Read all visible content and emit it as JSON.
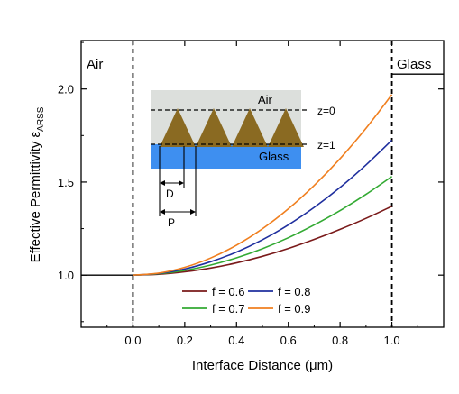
{
  "chart_data": {
    "type": "line",
    "xlabel": "Interface Distance (μm)",
    "ylabel": "Effective Permittivity ε",
    "ylabel_sub": "ARSS",
    "xlim": [
      -0.2,
      1.2
    ],
    "ylim": [
      0.72,
      2.26
    ],
    "xticks": [
      0.0,
      0.2,
      0.4,
      0.6,
      0.8,
      1.0
    ],
    "xtick_labels": [
      "0.0",
      "0.2",
      "0.4",
      "0.6",
      "0.8",
      "1.0"
    ],
    "yticks": [
      1.0,
      1.5,
      2.0
    ],
    "ytick_labels": [
      "1.0",
      "1.5",
      "2.0"
    ],
    "grid": false,
    "legend_position": "bottom-center",
    "region_labels": {
      "left": "Air",
      "right": "Glass"
    },
    "boundaries": [
      0.0,
      1.0
    ],
    "baseline": {
      "air_value": 1.0,
      "glass_value": 2.08
    },
    "series": [
      {
        "name": "f = 0.6",
        "color": "#7a1a1a",
        "x": [
          0.0,
          0.1,
          0.2,
          0.3,
          0.4,
          0.5,
          0.6,
          0.7,
          0.8,
          0.9,
          1.0
        ],
        "y": [
          1.0,
          1.005,
          1.018,
          1.038,
          1.066,
          1.101,
          1.143,
          1.192,
          1.246,
          1.305,
          1.37
        ]
      },
      {
        "name": "f = 0.7",
        "color": "#33aa33",
        "x": [
          0.0,
          0.1,
          0.2,
          0.3,
          0.4,
          0.5,
          0.6,
          0.7,
          0.8,
          0.9,
          1.0
        ],
        "y": [
          1.0,
          1.007,
          1.025,
          1.054,
          1.093,
          1.142,
          1.201,
          1.27,
          1.347,
          1.434,
          1.53
        ]
      },
      {
        "name": "f = 0.8",
        "color": "#1f2f9e",
        "x": [
          0.0,
          0.1,
          0.2,
          0.3,
          0.4,
          0.5,
          0.6,
          0.7,
          0.8,
          0.9,
          1.0
        ],
        "y": [
          1.0,
          1.009,
          1.033,
          1.072,
          1.124,
          1.19,
          1.27,
          1.364,
          1.471,
          1.592,
          1.725
        ]
      },
      {
        "name": "f = 0.9",
        "color": "#f07f1f",
        "x": [
          0.0,
          0.1,
          0.2,
          0.3,
          0.4,
          0.5,
          0.6,
          0.7,
          0.8,
          0.9,
          1.0
        ],
        "y": [
          1.0,
          1.011,
          1.042,
          1.092,
          1.161,
          1.249,
          1.356,
          1.482,
          1.626,
          1.789,
          1.97
        ]
      }
    ],
    "inset": {
      "air_label": "Air",
      "glass_label": "Glass",
      "z0_label": "z=0",
      "z1_label": "z=1",
      "d_label": "D",
      "p_label": "P",
      "colors": {
        "air": "#dcdfdc",
        "glass": "#3e8ff0",
        "cone": "#8a6a22"
      }
    }
  }
}
